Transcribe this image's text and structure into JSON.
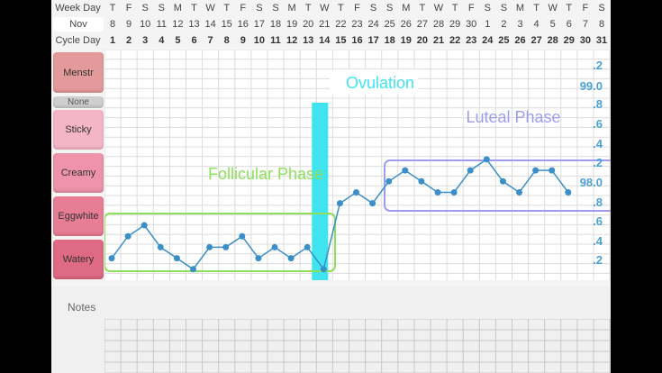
{
  "header": {
    "week_day_label": "Week Day",
    "month_label": "Nov",
    "cycle_day_label": "Cycle Day",
    "week_days": [
      "T",
      "F",
      "S",
      "S",
      "M",
      "T",
      "W",
      "T",
      "F",
      "S",
      "S",
      "M",
      "T",
      "W",
      "T",
      "F",
      "S",
      "S",
      "M",
      "T",
      "W",
      "T",
      "F",
      "S",
      "S",
      "M",
      "T",
      "W",
      "T",
      "F",
      "S"
    ],
    "dates": [
      "8",
      "9",
      "10",
      "11",
      "12",
      "13",
      "14",
      "15",
      "16",
      "17",
      "18",
      "19",
      "20",
      "21",
      "22",
      "23",
      "24",
      "25",
      "26",
      "27",
      "28",
      "29",
      "30",
      "1",
      "2",
      "3",
      "4",
      "5",
      "6",
      "7",
      "8"
    ],
    "cycle_days": [
      "1",
      "2",
      "3",
      "4",
      "5",
      "6",
      "7",
      "8",
      "9",
      "10",
      "11",
      "12",
      "13",
      "14",
      "15",
      "16",
      "17",
      "18",
      "19",
      "20",
      "21",
      "22",
      "23",
      "24",
      "25",
      "26",
      "27",
      "28",
      "29",
      "30",
      "31"
    ]
  },
  "sidebar": {
    "items": [
      {
        "label": "Menstr",
        "color": "#e49a9a"
      },
      {
        "label": "None",
        "color": "#cfcfcf"
      },
      {
        "label": "Sticky",
        "color": "#f4b6c6"
      },
      {
        "label": "Creamy",
        "color": "#ee93a9"
      },
      {
        "label": "Eggwhite",
        "color": "#e87d96"
      },
      {
        "label": "Watery",
        "color": "#df6a84"
      }
    ]
  },
  "axis": {
    "labels": [
      ".2",
      "99.0",
      ".8",
      ".6",
      ".4",
      ".2",
      "98.0",
      ".8",
      ".6",
      ".4",
      ".2"
    ],
    "color": "#4a9fd4"
  },
  "annotations": {
    "ovulation_label": "Ovulation",
    "ovulation_color": "#3fe4ef",
    "follicular_label": "Follicular Phase",
    "follicular_color": "#8ee05a",
    "luteal_label": "Luteal Phase",
    "luteal_color": "#9d9df0"
  },
  "chart_data": {
    "type": "line",
    "x": [
      1,
      2,
      3,
      4,
      5,
      6,
      7,
      8,
      9,
      10,
      11,
      12,
      13,
      14,
      15,
      16,
      17,
      18,
      19,
      20,
      21,
      22,
      23,
      24,
      25,
      26,
      27,
      28,
      29
    ],
    "values": [
      97.3,
      97.5,
      97.6,
      97.4,
      97.3,
      97.2,
      97.4,
      97.4,
      97.5,
      97.3,
      97.4,
      97.3,
      97.4,
      97.2,
      97.8,
      97.9,
      97.8,
      98.0,
      98.1,
      98.0,
      97.9,
      97.9,
      98.1,
      98.2,
      98.0,
      97.9,
      98.1,
      98.1,
      97.9
    ],
    "ylim": [
      97.1,
      99.2
    ],
    "line_color": "#3a8fc9"
  },
  "notes": {
    "label": "Notes"
  }
}
